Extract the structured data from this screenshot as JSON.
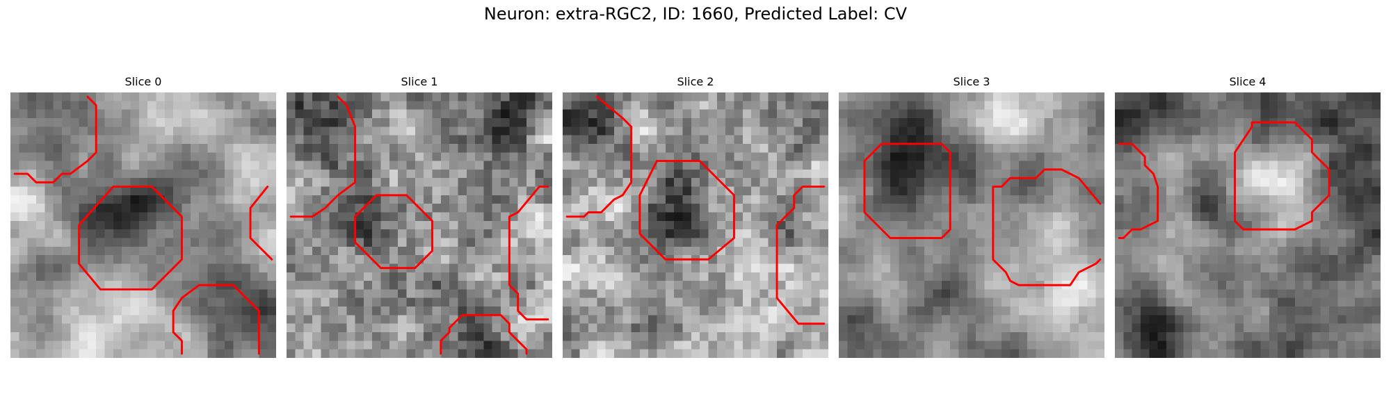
{
  "figure": {
    "title": "Neuron: extra-RGC2, ID: 1660, Predicted Label: CV"
  },
  "panels": [
    {
      "title": "Slice 0"
    },
    {
      "title": "Slice 1"
    },
    {
      "title": "Slice 2"
    },
    {
      "title": "Slice 3"
    },
    {
      "title": "Slice 4"
    }
  ],
  "colors": {
    "contour": "#ff0000",
    "background": "#ffffff",
    "image_colormap": "grayscale"
  }
}
